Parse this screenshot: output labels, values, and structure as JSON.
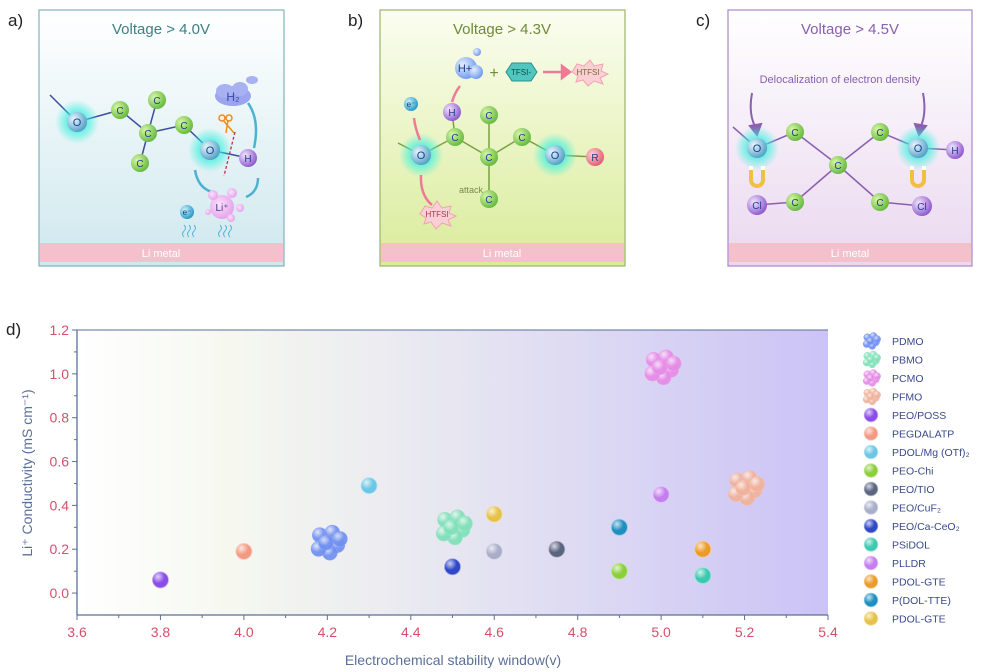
{
  "panels": {
    "a": {
      "label": "a)",
      "title": "Voltage > 4.0V",
      "title_color": "#3e7f86",
      "border_color": "#7fb4bd",
      "atoms": [
        "O",
        "C",
        "C",
        "C",
        "C",
        "C",
        "O",
        "H"
      ],
      "h2_label": "H₂",
      "li_label": "Li⁺",
      "electron_label": "e⁻",
      "metal_label": "Li metal"
    },
    "b": {
      "label": "b)",
      "title": "Voltage > 4.3V",
      "title_color": "#6f8a3a",
      "border_color": "#9bb56a",
      "atoms": [
        "O",
        "C",
        "H",
        "C",
        "C",
        "C",
        "C",
        "O",
        "R"
      ],
      "proton_label": "H+",
      "plus_label": "+",
      "tfsi_label": "TFSI-",
      "product_label": "HTFSI",
      "attacker_label": "HTFSI",
      "attack_label": "attack",
      "electron_label": "e⁻",
      "metal_label": "Li metal"
    },
    "c": {
      "label": "c)",
      "title": "Voltage > 4.5V",
      "title_color": "#8a5fb0",
      "border_color": "#a987cc",
      "annotation": "Delocalization of electron density",
      "atoms": [
        "O",
        "C",
        "C",
        "C",
        "O",
        "H",
        "Cl",
        "C",
        "C",
        "Cl"
      ],
      "metal_label": "Li metal"
    },
    "d": {
      "label": "d)"
    }
  },
  "chart_data": {
    "type": "scatter",
    "xlabel": "Electrochemical stability window(v)",
    "ylabel": "Li⁺ Conductivity (mS cm⁻¹)",
    "xlim": [
      3.6,
      5.4
    ],
    "ylim": [
      -0.1,
      1.2
    ],
    "xticks": [
      "3.6",
      "3.8",
      "4.0",
      "4.2",
      "4.4",
      "4.6",
      "4.8",
      "5.0",
      "5.2",
      "5.4"
    ],
    "yticks": [
      "0.0",
      "0.2",
      "0.4",
      "0.6",
      "0.8",
      "1.0",
      "1.2"
    ],
    "grid": false,
    "legend_position": "right-outside",
    "tick_label_color": "#d4506a",
    "axis_color": "#5b6f97",
    "background": "gradient white to lavender (#cdc6f6)",
    "series": [
      {
        "name": "PDMO",
        "x": 4.2,
        "y": 0.23,
        "color": "#6f8ef0",
        "marker": "cluster"
      },
      {
        "name": "PBMO",
        "x": 4.5,
        "y": 0.3,
        "color": "#7fe0b8",
        "marker": "cluster"
      },
      {
        "name": "PCMO",
        "x": 5.0,
        "y": 1.03,
        "color": "#e58ae6",
        "marker": "cluster"
      },
      {
        "name": "PFMO",
        "x": 5.2,
        "y": 0.48,
        "color": "#f0b19a",
        "marker": "cluster"
      },
      {
        "name": "PEO/POSS",
        "x": 3.8,
        "y": 0.06,
        "color": "#8a4de8",
        "marker": "sphere"
      },
      {
        "name": "PEGDALATP",
        "x": 4.0,
        "y": 0.19,
        "color": "#f49a82",
        "marker": "sphere"
      },
      {
        "name": "PDOL/Mg (OTf)₂",
        "x": 4.3,
        "y": 0.49,
        "color": "#6cc6e6",
        "marker": "sphere"
      },
      {
        "name": "PEO-Chi",
        "x": 4.9,
        "y": 0.1,
        "color": "#8ccf3a",
        "marker": "sphere"
      },
      {
        "name": "PEO/TIO",
        "x": 4.75,
        "y": 0.2,
        "color": "#5a6580",
        "marker": "sphere"
      },
      {
        "name": "PEO/CuF₂",
        "x": 4.6,
        "y": 0.19,
        "color": "#a9adc8",
        "marker": "sphere"
      },
      {
        "name": "PEO/Ca-CeO₂",
        "x": 4.5,
        "y": 0.12,
        "color": "#3048c8",
        "marker": "sphere"
      },
      {
        "name": "PSiDOL",
        "x": 5.1,
        "y": 0.08,
        "color": "#3cc9b0",
        "marker": "sphere"
      },
      {
        "name": "PLLDR",
        "x": 5.0,
        "y": 0.45,
        "color": "#c57ef0",
        "marker": "sphere"
      },
      {
        "name": "PDOL-GTE",
        "x": 5.1,
        "y": 0.2,
        "color": "#ec9a28",
        "marker": "sphere"
      },
      {
        "name": "P(DOL-TTE)",
        "x": 4.9,
        "y": 0.3,
        "color": "#1f8fc0",
        "marker": "sphere"
      },
      {
        "name": "PDOL-GTE",
        "x": 4.6,
        "y": 0.36,
        "color": "#e7c24a",
        "marker": "sphere"
      }
    ]
  }
}
